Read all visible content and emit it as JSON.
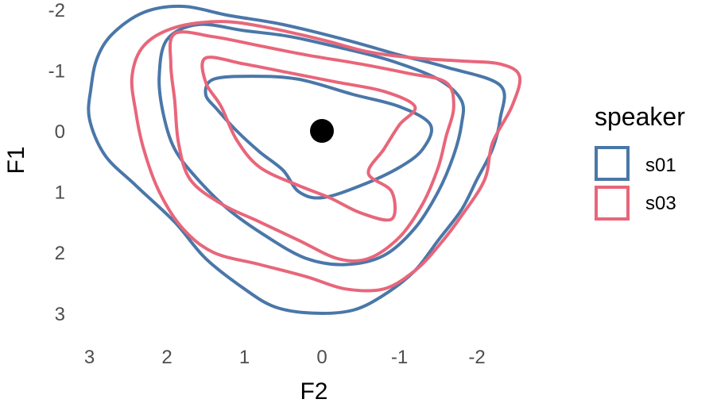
{
  "chart_data": {
    "type": "contour",
    "xlabel": "F2",
    "ylabel": "F1",
    "x_reversed": true,
    "y_reversed": true,
    "xlim": [
      3.1,
      -2.4
    ],
    "ylim": [
      -2.1,
      3.3
    ],
    "x_ticks": [
      3,
      2,
      1,
      0,
      -1,
      -2
    ],
    "x_tick_labels": [
      "3",
      "2",
      "1",
      "0",
      "-1",
      "-2"
    ],
    "y_ticks": [
      -2,
      -1,
      0,
      1,
      2,
      3
    ],
    "y_tick_labels": [
      "-2",
      "-1",
      "0",
      "1",
      "2",
      "3"
    ],
    "grid": false,
    "legend": {
      "title": "speaker",
      "position": "right",
      "entries": [
        {
          "label": "s01",
          "color": "#4a77a8"
        },
        {
          "label": "s03",
          "color": "#e8667a"
        }
      ]
    },
    "point": {
      "x": 0,
      "y": 0,
      "color": "#000000"
    },
    "series": [
      {
        "name": "s01",
        "color": "#4a77a8",
        "contours": [
          [
            [
              2.9,
              -1.2
            ],
            [
              2.7,
              -1.6
            ],
            [
              2.3,
              -1.95
            ],
            [
              1.8,
              -2.05
            ],
            [
              1.2,
              -1.9
            ],
            [
              0.5,
              -1.75
            ],
            [
              -0.3,
              -1.5
            ],
            [
              -1.0,
              -1.25
            ],
            [
              -1.6,
              -1.05
            ],
            [
              -2.3,
              -0.75
            ],
            [
              -2.3,
              -0.2
            ],
            [
              -2.2,
              0.3
            ],
            [
              -2.0,
              0.8
            ],
            [
              -1.8,
              1.3
            ],
            [
              -1.5,
              1.8
            ],
            [
              -1.2,
              2.3
            ],
            [
              -0.8,
              2.7
            ],
            [
              -0.4,
              2.95
            ],
            [
              0.1,
              3.0
            ],
            [
              0.6,
              2.9
            ],
            [
              1.0,
              2.6
            ],
            [
              1.5,
              2.1
            ],
            [
              1.9,
              1.5
            ],
            [
              2.4,
              0.9
            ],
            [
              2.8,
              0.4
            ],
            [
              3.0,
              -0.2
            ],
            [
              2.98,
              -0.7
            ],
            [
              2.9,
              -1.2
            ]
          ],
          [
            [
              2.0,
              -1.5
            ],
            [
              1.6,
              -1.75
            ],
            [
              1.0,
              -1.65
            ],
            [
              0.4,
              -1.55
            ],
            [
              -0.3,
              -1.35
            ],
            [
              -0.9,
              -1.15
            ],
            [
              -1.5,
              -0.85
            ],
            [
              -1.8,
              -0.5
            ],
            [
              -1.8,
              -0.1
            ],
            [
              -1.7,
              0.4
            ],
            [
              -1.5,
              1.0
            ],
            [
              -1.2,
              1.6
            ],
            [
              -0.8,
              2.05
            ],
            [
              -0.3,
              2.2
            ],
            [
              0.2,
              2.1
            ],
            [
              0.7,
              1.75
            ],
            [
              1.2,
              1.3
            ],
            [
              1.6,
              0.8
            ],
            [
              1.9,
              0.3
            ],
            [
              2.05,
              -0.3
            ],
            [
              2.1,
              -0.9
            ],
            [
              2.0,
              -1.5
            ]
          ],
          [
            [
              1.4,
              -0.85
            ],
            [
              0.9,
              -0.9
            ],
            [
              0.3,
              -0.85
            ],
            [
              -0.4,
              -0.6
            ],
            [
              -1.0,
              -0.4
            ],
            [
              -1.4,
              -0.1
            ],
            [
              -1.3,
              0.3
            ],
            [
              -1.0,
              0.6
            ],
            [
              -0.5,
              0.9
            ],
            [
              0.0,
              1.1
            ],
            [
              0.3,
              1.0
            ],
            [
              0.5,
              0.65
            ],
            [
              0.8,
              0.35
            ],
            [
              1.1,
              0.0
            ],
            [
              1.35,
              -0.35
            ],
            [
              1.5,
              -0.6
            ],
            [
              1.4,
              -0.85
            ]
          ]
        ]
      },
      {
        "name": "s03",
        "color": "#e8667a",
        "contours": [
          [
            [
              2.3,
              -1.4
            ],
            [
              1.9,
              -1.7
            ],
            [
              1.3,
              -1.8
            ],
            [
              0.7,
              -1.7
            ],
            [
              0.0,
              -1.5
            ],
            [
              -0.6,
              -1.3
            ],
            [
              -1.2,
              -1.2
            ],
            [
              -1.8,
              -1.15
            ],
            [
              -2.3,
              -1.1
            ],
            [
              -2.55,
              -0.9
            ],
            [
              -2.45,
              -0.4
            ],
            [
              -2.2,
              0.2
            ],
            [
              -2.1,
              0.8
            ],
            [
              -1.8,
              1.4
            ],
            [
              -1.5,
              1.9
            ],
            [
              -1.2,
              2.3
            ],
            [
              -0.8,
              2.6
            ],
            [
              -0.3,
              2.6
            ],
            [
              0.2,
              2.4
            ],
            [
              0.8,
              2.2
            ],
            [
              1.4,
              2.0
            ],
            [
              1.8,
              1.6
            ],
            [
              2.1,
              1.0
            ],
            [
              2.3,
              0.3
            ],
            [
              2.4,
              -0.3
            ],
            [
              2.45,
              -0.9
            ],
            [
              2.3,
              -1.4
            ]
          ],
          [
            [
              1.9,
              -1.6
            ],
            [
              1.4,
              -1.55
            ],
            [
              0.8,
              -1.4
            ],
            [
              0.2,
              -1.25
            ],
            [
              -0.5,
              -1.1
            ],
            [
              -1.1,
              -0.95
            ],
            [
              -1.6,
              -0.8
            ],
            [
              -1.7,
              -0.4
            ],
            [
              -1.6,
              0.1
            ],
            [
              -1.5,
              0.6
            ],
            [
              -1.3,
              1.2
            ],
            [
              -1.0,
              1.75
            ],
            [
              -0.6,
              2.1
            ],
            [
              -0.2,
              2.1
            ],
            [
              0.3,
              1.8
            ],
            [
              0.8,
              1.5
            ],
            [
              1.3,
              1.2
            ],
            [
              1.7,
              0.8
            ],
            [
              1.85,
              0.2
            ],
            [
              1.9,
              -0.5
            ],
            [
              1.95,
              -1.1
            ],
            [
              1.9,
              -1.6
            ]
          ],
          [
            [
              1.5,
              -1.2
            ],
            [
              1.0,
              -1.1
            ],
            [
              0.4,
              -0.95
            ],
            [
              -0.2,
              -0.8
            ],
            [
              -0.8,
              -0.65
            ],
            [
              -1.2,
              -0.4
            ],
            [
              -1.0,
              -0.1
            ],
            [
              -0.8,
              0.3
            ],
            [
              -0.6,
              0.7
            ],
            [
              -0.9,
              1.0
            ],
            [
              -0.9,
              1.45
            ],
            [
              -0.5,
              1.35
            ],
            [
              -0.1,
              1.1
            ],
            [
              0.3,
              0.9
            ],
            [
              0.8,
              0.6
            ],
            [
              1.1,
              0.15
            ],
            [
              1.3,
              -0.4
            ],
            [
              1.5,
              -0.8
            ],
            [
              1.5,
              -1.2
            ]
          ]
        ]
      }
    ]
  }
}
